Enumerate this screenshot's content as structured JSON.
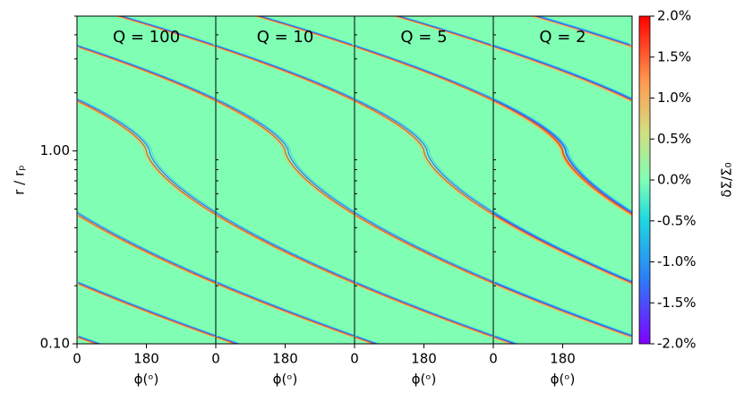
{
  "chart_data": {
    "type": "heatmap",
    "panels": [
      {
        "title": "Q = 100"
      },
      {
        "title": "Q = 10"
      },
      {
        "title": "Q = 5"
      },
      {
        "title": "Q = 2"
      }
    ],
    "xlabel": "ϕ(ᵒ)",
    "ylabel": "r / rₚ",
    "xlim": [
      0,
      360
    ],
    "xticks": [
      0,
      180
    ],
    "ylim": [
      0.1,
      5
    ],
    "log_y": true,
    "yticks": [
      {
        "value": 0.1,
        "label": "0.10"
      },
      {
        "value": 1,
        "label": "1.00"
      }
    ],
    "yminorticks": [
      0.2,
      0.3,
      0.4,
      0.5,
      0.6,
      0.7,
      0.8,
      0.9,
      2,
      3,
      4,
      5
    ],
    "colorbar_label": "δΣ/Σ₀",
    "clim": [
      -2,
      2
    ],
    "cticks": [
      {
        "value": -2,
        "label": "-2.0%"
      },
      {
        "value": -1.5,
        "label": "-1.5%"
      },
      {
        "value": -1,
        "label": "-1.0%"
      },
      {
        "value": -0.5,
        "label": "-0.5%"
      },
      {
        "value": 0,
        "label": "0.0%"
      },
      {
        "value": 0.5,
        "label": "0.5%"
      },
      {
        "value": 1,
        "label": "1.0%"
      },
      {
        "value": 1.5,
        "label": "1.5%"
      },
      {
        "value": 2,
        "label": "2.0%"
      }
    ]
  }
}
